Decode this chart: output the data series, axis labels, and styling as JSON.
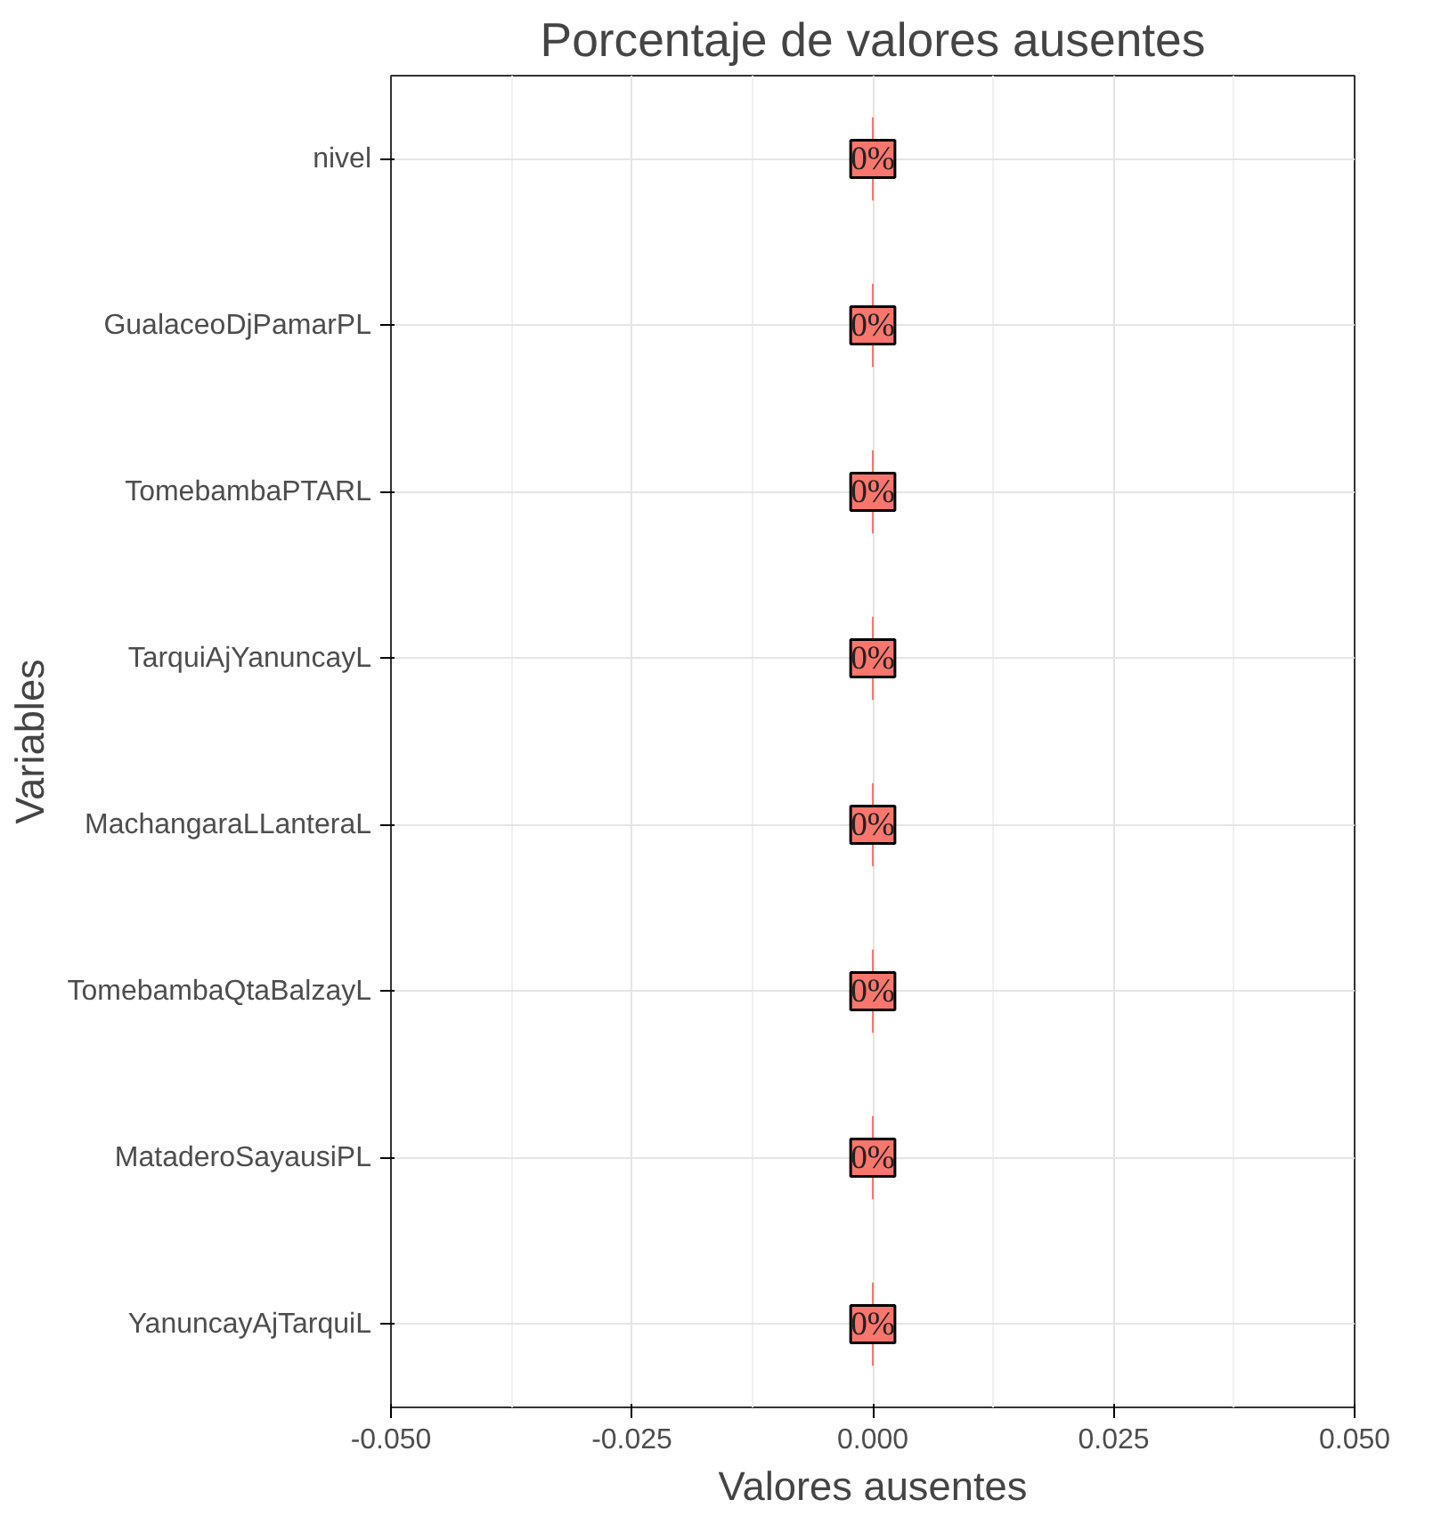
{
  "chart_data": {
    "type": "bar",
    "orientation": "horizontal",
    "title": "Porcentaje de valores ausentes",
    "xlabel": "Valores ausentes",
    "ylabel": "Variables",
    "categories": [
      "nivel",
      "GualaceoDjPamarPL",
      "TomebambaPTARL",
      "TarquiAjYanuncayL",
      "MachangaraLLanteraL",
      "TomebambaQtaBalzayL",
      "MataderoSayausiPL",
      "YanuncayAjTarquiL"
    ],
    "values": [
      0,
      0,
      0,
      0,
      0,
      0,
      0,
      0
    ],
    "value_labels": [
      "0%",
      "0%",
      "0%",
      "0%",
      "0%",
      "0%",
      "0%",
      "0%"
    ],
    "color": "#f8766d",
    "xlim": [
      -0.05,
      0.05
    ],
    "xticks": [
      {
        "value": -0.05,
        "label": "-0.050"
      },
      {
        "value": -0.025,
        "label": "-0.025"
      },
      {
        "value": 0,
        "label": "0.000"
      },
      {
        "value": 0.025,
        "label": "0.025"
      },
      {
        "value": 0.05,
        "label": "0.050"
      }
    ],
    "grid": true
  }
}
